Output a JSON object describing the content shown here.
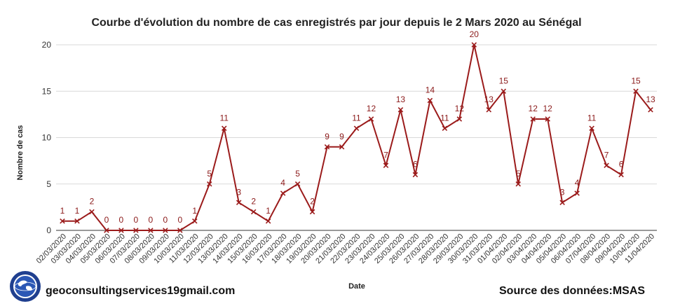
{
  "footer": {
    "left_text": "geoconsultingservices19gmail.com",
    "right_text": "Source des données:MSAS"
  },
  "colors": {
    "series": "#9b1b1b",
    "label": "#8b1a1a"
  },
  "chart_data": {
    "type": "line",
    "title": "Courbe d'évolution du nombre de cas enregistrés par jour depuis le 2 Mars 2020 au Sénégal",
    "xlabel": "Date",
    "ylabel": "Nombre de cas",
    "ylim": [
      0,
      20
    ],
    "yticks": [
      0,
      5,
      10,
      15,
      20
    ],
    "grid": true,
    "legend": "none",
    "categories": [
      "02/03/2020",
      "03/03/2020",
      "04/03/2020",
      "05/03/2020",
      "06/03/2020",
      "07/03/2020",
      "08/03/2020",
      "09/03/2020",
      "10/03/2020",
      "11/03/2020",
      "12/03/2020",
      "13/03/2020",
      "14/03/2020",
      "15/03/2020",
      "16/03/2020",
      "17/03/2020",
      "18/03/2020",
      "19/03/2020",
      "20/03/2020",
      "21/03/2020",
      "22/03/2020",
      "23/03/2020",
      "24/03/2020",
      "25/03/2020",
      "26/03/2020",
      "27/03/2020",
      "28/03/2020",
      "29/03/2020",
      "30/03/2020",
      "31/03/2020",
      "01/04/2020",
      "02/04/2020",
      "03/04/2020",
      "04/04/2020",
      "05/04/2020",
      "06/04/2020",
      "07/04/2020",
      "08/04/2020",
      "09/04/2020",
      "10/04/2020",
      "11/04/2020"
    ],
    "values": [
      1,
      1,
      2,
      0,
      0,
      0,
      0,
      0,
      0,
      1,
      5,
      11,
      3,
      2,
      1,
      4,
      5,
      2,
      9,
      9,
      11,
      12,
      7,
      13,
      6,
      14,
      11,
      12,
      20,
      13,
      15,
      5,
      12,
      12,
      3,
      4,
      11,
      7,
      6,
      15,
      13
    ]
  }
}
